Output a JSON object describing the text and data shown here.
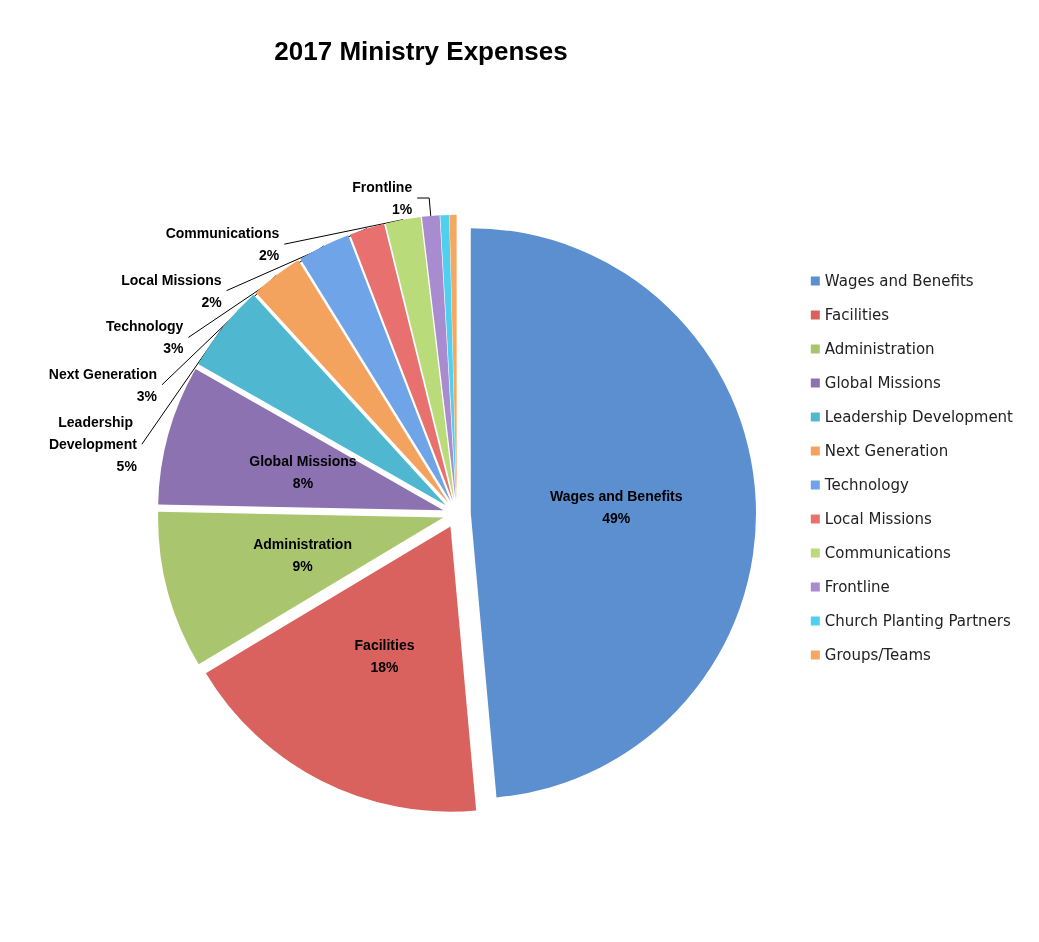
{
  "chart_data": {
    "type": "pie",
    "title": "2017 Ministry Expenses",
    "categories": [
      "Wages and Benefits",
      "Facilities",
      "Administration",
      "Global Missions",
      "Leadership Development",
      "Next Generation",
      "Technology",
      "Local Missions",
      "Communications",
      "Frontline",
      "Church Planting Partners",
      "Groups/Teams"
    ],
    "values": [
      49,
      18,
      9,
      8,
      5,
      3,
      3,
      2,
      2,
      1,
      0.5,
      0.4
    ],
    "value_labels": [
      "49%",
      "18%",
      "9%",
      "8%",
      "5%",
      "3%",
      "3%",
      "2%",
      "2%",
      "1%",
      null,
      null
    ],
    "colors": [
      "#5b8fd0",
      "#d9625f",
      "#a9c66e",
      "#8c72b0",
      "#4fb8d0",
      "#f4a35f",
      "#6fa4e8",
      "#e8706e",
      "#b9db7a",
      "#a98bd0",
      "#4fd0ee",
      "#f5a862"
    ],
    "legend": "right"
  }
}
